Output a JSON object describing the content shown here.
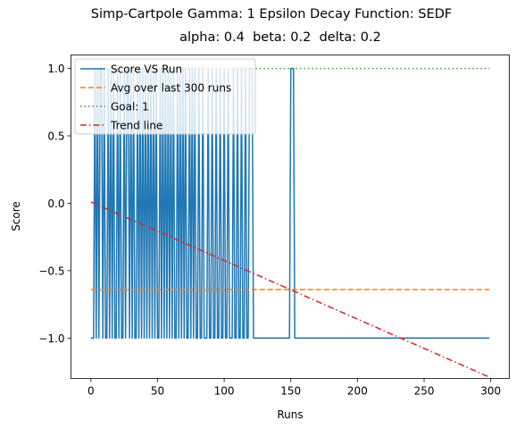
{
  "chart_data": {
    "type": "line",
    "title": "Simp-Cartpole Gamma: 1 Epsilon Decay Function: SEDF",
    "subtitle": "alpha: 0.4  beta: 0.2  delta: 0.2",
    "xlabel": "Runs",
    "ylabel": "Score",
    "xlim": [
      -14.95,
      313.95
    ],
    "ylim": [
      -1.3,
      1.1
    ],
    "xticks": [
      0,
      50,
      100,
      150,
      200,
      250,
      300
    ],
    "xtick_labels": [
      "0",
      "50",
      "100",
      "150",
      "200",
      "250",
      "300"
    ],
    "yticks": [
      -1.0,
      -0.5,
      0.0,
      0.5,
      1.0
    ],
    "ytick_labels": [
      "−1.0",
      "−0.5",
      "0.0",
      "0.5",
      "1.0"
    ],
    "grid": false,
    "legend_position": "upper-left",
    "series": [
      {
        "name": "Score VS Run",
        "color": "#1f77b4",
        "style": "solid",
        "success_runs": [
          3,
          5,
          7,
          8,
          10,
          13,
          15,
          17,
          20,
          22,
          25,
          27,
          28,
          30,
          32,
          35,
          37,
          39,
          41,
          43,
          45,
          47,
          49,
          52,
          54,
          56,
          58,
          60,
          62,
          65,
          67,
          69,
          71,
          74,
          76,
          78,
          81,
          84,
          88,
          91,
          94,
          97,
          100,
          103,
          107,
          110,
          113,
          116,
          119,
          120,
          121,
          150,
          151,
          152
        ],
        "base_value": -1,
        "success_value": 1,
        "x_range": [
          0,
          299
        ]
      },
      {
        "name": "Avg over last 300 runs",
        "color": "#ff7f0e",
        "style": "dashed",
        "x": [
          0,
          299
        ],
        "values": [
          -0.64,
          -0.64
        ]
      },
      {
        "name": "Goal: 1",
        "color": "#2ca02c",
        "style": "dotted",
        "x": [
          0,
          299
        ],
        "values": [
          1,
          1
        ]
      },
      {
        "name": "Trend line",
        "color": "#d62728",
        "style": "dashdot",
        "x": [
          0,
          299
        ],
        "values": [
          0.01,
          -1.29
        ]
      }
    ]
  }
}
